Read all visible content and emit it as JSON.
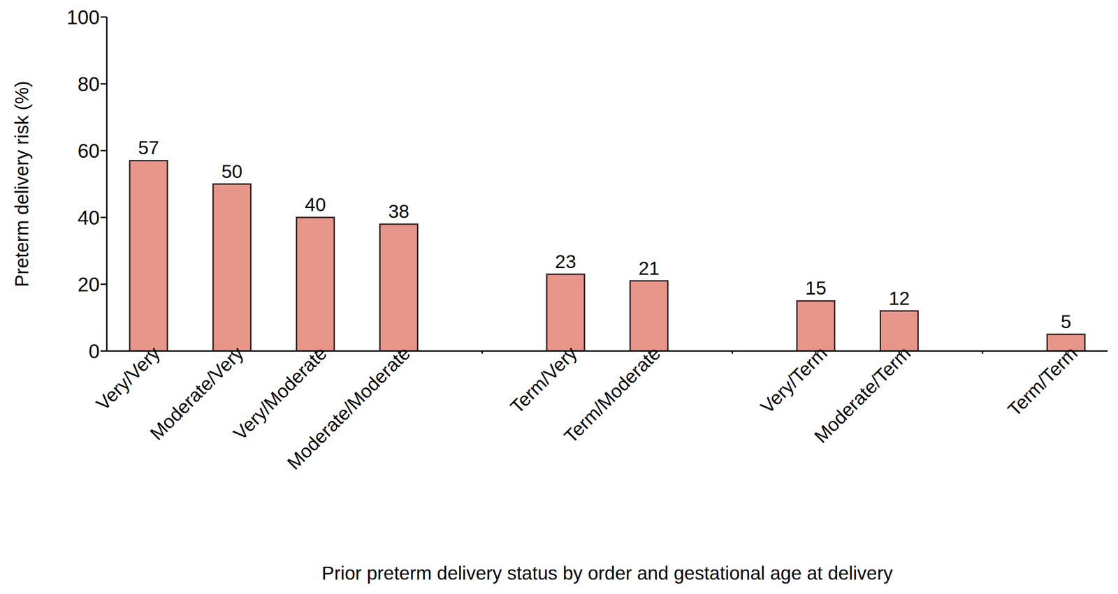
{
  "chart_data": {
    "type": "bar",
    "x_label": "Prior preterm delivery status by order and gestational age at delivery",
    "y_label": "Preterm delivery risk (%)",
    "categories": [
      "Very/Very",
      "Moderate/Very",
      "Very/Moderate",
      "Moderate/Moderate",
      null,
      "Term/Very",
      "Term/Moderate",
      null,
      "Very/Term",
      "Moderate/Term",
      null,
      "Term/Term"
    ],
    "values": [
      57,
      50,
      40,
      38,
      null,
      23,
      21,
      null,
      15,
      12,
      null,
      5
    ],
    "color": "#e8968a",
    "ylim": [
      0,
      100
    ],
    "yticks": [
      0,
      20,
      40,
      60,
      80,
      100
    ],
    "grid": false,
    "data_labels": true
  }
}
